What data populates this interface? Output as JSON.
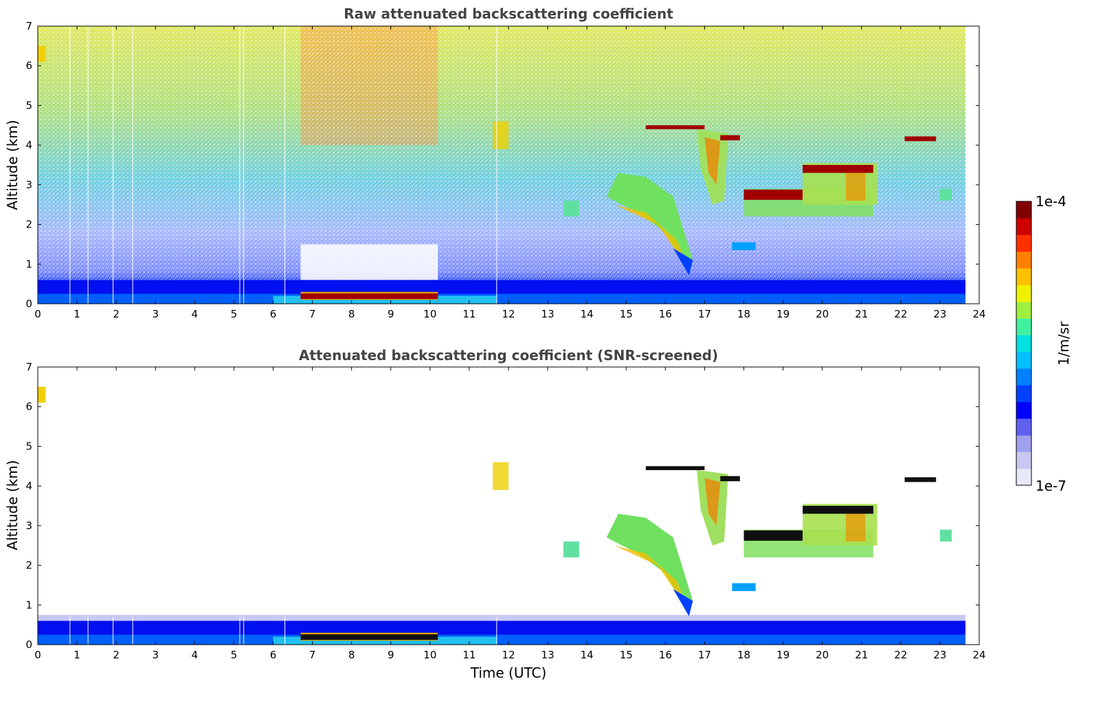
{
  "chart_data": [
    {
      "type": "heatmap",
      "title": "Raw attenuated backscattering coefficient",
      "xlabel": "",
      "ylabel": "Altitude (km)",
      "xlim": [
        0,
        24
      ],
      "ylim": [
        0,
        7
      ],
      "xticks": [
        "0",
        "1",
        "2",
        "3",
        "4",
        "5",
        "6",
        "7",
        "8",
        "9",
        "10",
        "11",
        "12",
        "13",
        "14",
        "15",
        "16",
        "17",
        "18",
        "19",
        "20",
        "21",
        "22",
        "23",
        "24"
      ],
      "yticks": [
        "0",
        "1",
        "2",
        "3",
        "4",
        "5",
        "6",
        "7"
      ],
      "data_end_time": 23.65
    },
    {
      "type": "heatmap",
      "title": "Attenuated backscattering coefficient (SNR-screened)",
      "xlabel": "Time (UTC)",
      "ylabel": "Altitude (km)",
      "xlim": [
        0,
        24
      ],
      "ylim": [
        0,
        7
      ],
      "xticks": [
        "0",
        "1",
        "2",
        "3",
        "4",
        "5",
        "6",
        "7",
        "8",
        "9",
        "10",
        "11",
        "12",
        "13",
        "14",
        "15",
        "16",
        "17",
        "18",
        "19",
        "20",
        "21",
        "22",
        "23",
        "24"
      ],
      "yticks": [
        "0",
        "1",
        "2",
        "3",
        "4",
        "5",
        "6",
        "7"
      ],
      "data_end_time": 23.65
    }
  ],
  "colorbar": {
    "label": "1/m/sr",
    "max_label": "1e-4",
    "min_label": "1e-7",
    "colors": [
      "#e8e8f8",
      "#c8c8f0",
      "#a0a0f0",
      "#6060f0",
      "#0000ff",
      "#0040ff",
      "#0080ff",
      "#00c0ff",
      "#00e0e0",
      "#40f0a0",
      "#a0f040",
      "#f0f000",
      "#ffc000",
      "#ff8000",
      "#ff3000",
      "#d00000",
      "#800000"
    ]
  },
  "features": [
    {
      "name": "boundary-layer",
      "t0": 0,
      "t1": 23.65,
      "h0": 0,
      "h1": 0.6
    },
    {
      "name": "low-cloud-morning",
      "t0": 6.7,
      "t1": 10.2,
      "h": 0.2
    },
    {
      "name": "cirrus-15-17",
      "t0": 14.5,
      "t1": 16.7,
      "h0": 0.7,
      "h1": 4.5
    },
    {
      "name": "fallstreak-17",
      "t0": 16.8,
      "t1": 17.6,
      "h0": 2.5,
      "h1": 4.4
    },
    {
      "name": "cloud-layer-18-19",
      "t0": 18,
      "t1": 19.5,
      "h": 2.75
    },
    {
      "name": "cloud-layer-20-21",
      "t0": 19.5,
      "t1": 21.3,
      "h": 3.4
    },
    {
      "name": "upper-streak-22",
      "t0": 22.1,
      "t1": 22.9,
      "h": 4.15
    }
  ]
}
